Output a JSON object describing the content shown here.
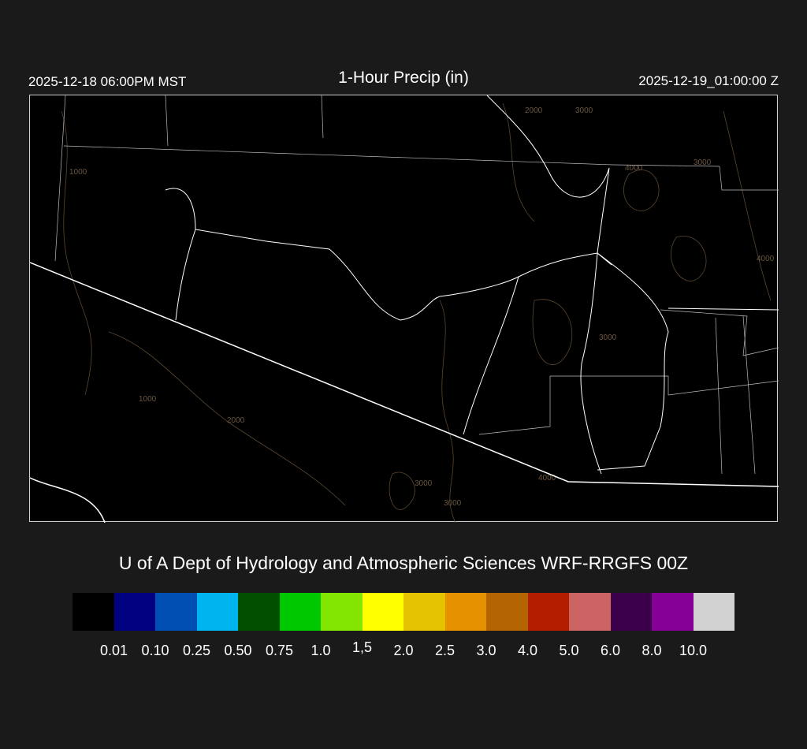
{
  "header": {
    "valid_local": "2025-12-18 06:00PM MST",
    "title": "1-Hour Precip (in)",
    "valid_utc": "2025-12-19_01:00:00 Z"
  },
  "map": {
    "background": "#000000",
    "boundary_color": "#ffffff",
    "contour_color": "#5a4632",
    "contour_labels": [
      "1000",
      "2000",
      "3000",
      "4000",
      "3000",
      "4000",
      "3000",
      "1000",
      "2000",
      "3000",
      "3000",
      "4000"
    ]
  },
  "credit": "U of A Dept of Hydrology and Atmospheric Sciences WRF-RRGFS 00Z",
  "colorbar": {
    "colors": [
      "#000000",
      "#000080",
      "#0050b4",
      "#00b4f0",
      "#005000",
      "#00c800",
      "#82e600",
      "#ffff00",
      "#e6c300",
      "#e69100",
      "#b46400",
      "#b41e00",
      "#cd6464",
      "#3c004b",
      "#870096",
      "#d2d2d2"
    ],
    "labels": [
      "0.01",
      "0.10",
      "0.25",
      "0.50",
      "0.75",
      "1.0",
      "1,5",
      "2.0",
      "2.5",
      "3.0",
      "4.0",
      "5.0",
      "6.0",
      "8.0",
      "10.0"
    ]
  }
}
